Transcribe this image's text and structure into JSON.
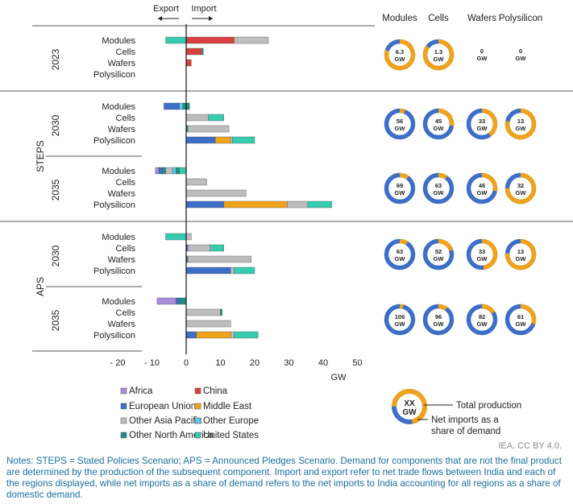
{
  "chart_data": {
    "type": "bar",
    "stacked": true,
    "orientation": "horizontal",
    "direction_labels": {
      "export": "Export",
      "import": "Import"
    },
    "xlabel": "GW",
    "xlim": [
      -20,
      50
    ],
    "x_ticks": [
      -20,
      -10,
      0,
      10,
      20,
      30,
      40,
      50
    ],
    "x_tick_labels": [
      "- 20",
      "- 10",
      "0",
      "10",
      "20",
      "30",
      "40",
      "50"
    ],
    "grid": false,
    "scenarios": [
      {
        "name": "",
        "year": "2023",
        "rows": [
          {
            "label": "Modules",
            "segments": [
              {
                "region": "United States",
                "value": -6
              },
              {
                "region": "China",
                "value": 14
              },
              {
                "region": "Other Asia Pacific",
                "value": 10
              }
            ]
          },
          {
            "label": "Cells",
            "segments": [
              {
                "region": "China",
                "value": 4.5
              },
              {
                "region": "Other North America",
                "value": 0.5
              }
            ]
          },
          {
            "label": "Wafers",
            "segments": [
              {
                "region": "China",
                "value": 1.5
              }
            ]
          },
          {
            "label": "Polysilicon",
            "segments": []
          }
        ]
      },
      {
        "name": "STEPS",
        "year": "2030",
        "rows": [
          {
            "label": "Modules",
            "segments": [
              {
                "region": "Other North America",
                "value": -1
              },
              {
                "region": "Other Europe",
                "value": -1
              },
              {
                "region": "European Union",
                "value": -4.5
              },
              {
                "region": "Other North America",
                "value": 1
              }
            ]
          },
          {
            "label": "Cells",
            "segments": [
              {
                "region": "Other Asia Pacific",
                "value": 6.5
              },
              {
                "region": "United States",
                "value": 4.5
              }
            ]
          },
          {
            "label": "Wafers",
            "segments": [
              {
                "region": "Other North America",
                "value": 0.5
              },
              {
                "region": "Other Asia Pacific",
                "value": 12
              }
            ]
          },
          {
            "label": "Polysilicon",
            "segments": [
              {
                "region": "European Union",
                "value": 8.5
              },
              {
                "region": "Middle East",
                "value": 4.5
              },
              {
                "region": "Other Asia Pacific",
                "value": 0.5
              },
              {
                "region": "United States",
                "value": 6.5
              }
            ]
          }
        ]
      },
      {
        "name": "STEPS",
        "year": "2035",
        "rows": [
          {
            "label": "Modules",
            "segments": [
              {
                "region": "United States",
                "value": -2
              },
              {
                "region": "Other North America",
                "value": -1
              },
              {
                "region": "Other Europe",
                "value": -1
              },
              {
                "region": "Other Asia Pacific",
                "value": -2
              },
              {
                "region": "Other North America",
                "value": -1
              },
              {
                "region": "European Union",
                "value": -1
              },
              {
                "region": "Africa",
                "value": -1
              }
            ]
          },
          {
            "label": "Cells",
            "segments": [
              {
                "region": "Other Asia Pacific",
                "value": 6
              }
            ]
          },
          {
            "label": "Wafers",
            "segments": [
              {
                "region": "Other Asia Pacific",
                "value": 17.5
              }
            ]
          },
          {
            "label": "Polysilicon",
            "segments": [
              {
                "region": "European Union",
                "value": 11
              },
              {
                "region": "Middle East",
                "value": 18.5
              },
              {
                "region": "Other Asia Pacific",
                "value": 6
              },
              {
                "region": "United States",
                "value": 7
              }
            ]
          }
        ]
      },
      {
        "name": "APS",
        "year": "2030",
        "rows": [
          {
            "label": "Modules",
            "segments": [
              {
                "region": "United States",
                "value": -6
              },
              {
                "region": "Other Asia Pacific",
                "value": 1.5
              }
            ]
          },
          {
            "label": "Cells",
            "segments": [
              {
                "region": "European Union",
                "value": 0.5
              },
              {
                "region": "Other Asia Pacific",
                "value": 6.5
              },
              {
                "region": "United States",
                "value": 4
              }
            ]
          },
          {
            "label": "Wafers",
            "segments": [
              {
                "region": "Other North America",
                "value": 0.5
              },
              {
                "region": "Other Asia Pacific",
                "value": 18.5
              }
            ]
          },
          {
            "label": "Polysilicon",
            "segments": [
              {
                "region": "European Union",
                "value": 13
              },
              {
                "region": "Other Asia Pacific",
                "value": 1
              },
              {
                "region": "United States",
                "value": 6
              }
            ]
          }
        ]
      },
      {
        "name": "APS",
        "year": "2035",
        "rows": [
          {
            "label": "Modules",
            "segments": [
              {
                "region": "Other North America",
                "value": -2
              },
              {
                "region": "European Union",
                "value": -1
              },
              {
                "region": "Africa",
                "value": -5.5
              }
            ]
          },
          {
            "label": "Cells",
            "segments": [
              {
                "region": "Other Asia Pacific",
                "value": 10
              },
              {
                "region": "Other North America",
                "value": 0.5
              }
            ]
          },
          {
            "label": "Wafers",
            "segments": [
              {
                "region": "Other Asia Pacific",
                "value": 13
              }
            ]
          },
          {
            "label": "Polysilicon",
            "segments": [
              {
                "region": "European Union",
                "value": 3
              },
              {
                "region": "Middle East",
                "value": 10
              },
              {
                "region": "Other Asia Pacific",
                "value": 1
              },
              {
                "region": "United States",
                "value": 7
              }
            ]
          }
        ]
      }
    ],
    "donut_headers": [
      "Modules",
      "Cells",
      "Wafers",
      "Polysilicon"
    ],
    "donuts": [
      [
        {
          "label": "6.3",
          "unit": "GW",
          "share": 0.8
        },
        {
          "label": "1.3",
          "unit": "GW",
          "share": 0.85
        },
        {
          "label": "0",
          "unit": "GW",
          "share": null
        },
        {
          "label": "0",
          "unit": "GW",
          "share": null
        }
      ],
      [
        {
          "label": "56",
          "unit": "GW",
          "share": 0.06
        },
        {
          "label": "45",
          "unit": "GW",
          "share": 0.27
        },
        {
          "label": "33",
          "unit": "GW",
          "share": 0.4
        },
        {
          "label": "13",
          "unit": "GW",
          "share": 0.78
        }
      ],
      [
        {
          "label": "69",
          "unit": "GW",
          "share": 0.1
        },
        {
          "label": "63",
          "unit": "GW",
          "share": 0.1
        },
        {
          "label": "46",
          "unit": "GW",
          "share": 0.28
        },
        {
          "label": "32",
          "unit": "GW",
          "share": 0.75
        }
      ],
      [
        {
          "label": "63",
          "unit": "GW",
          "share": 0.09
        },
        {
          "label": "52",
          "unit": "GW",
          "share": 0.2
        },
        {
          "label": "33",
          "unit": "GW",
          "share": 0.48
        },
        {
          "label": "13",
          "unit": "GW",
          "share": 0.76
        }
      ],
      [
        {
          "label": "106",
          "unit": "GW",
          "share": 0.04
        },
        {
          "label": "96",
          "unit": "GW",
          "share": 0.1
        },
        {
          "label": "82",
          "unit": "GW",
          "share": 0.16
        },
        {
          "label": "61",
          "unit": "GW",
          "share": 0.3
        }
      ]
    ],
    "legend": [
      {
        "name": "Africa",
        "color": "#a88ddb"
      },
      {
        "name": "China",
        "color": "#d9403f"
      },
      {
        "name": "European Union",
        "color": "#3d6fc8"
      },
      {
        "name": "Middle East",
        "color": "#f0a21a"
      },
      {
        "name": "Other Asia Pacific",
        "color": "#bdbdbd"
      },
      {
        "name": "Other Europe",
        "color": "#5ac8ea"
      },
      {
        "name": "Other North America",
        "color": "#1f8f88"
      },
      {
        "name": "United States",
        "color": "#35ccb0"
      }
    ],
    "donut_legend": {
      "value": "XX",
      "unit": "GW",
      "total_label": "Total production",
      "share_label": "Net imports as a share of demand",
      "share": 0.72
    },
    "donut_colors": {
      "production": "#3d6fc8",
      "imports": "#f0a21a"
    }
  },
  "credit": "IEA. CC BY 4.0.",
  "notes": "Notes: STEPS = Stated Policies Scenario; APS = Announced Pledges Scenario. Demand for components that are not the final product are determined by the production of the subsequent component. Import and export refer to net trade flows between India and each of the regions displayed, while net imports as a share of demand refers to the net imports to India accounting for all regions as a share of domestic demand."
}
